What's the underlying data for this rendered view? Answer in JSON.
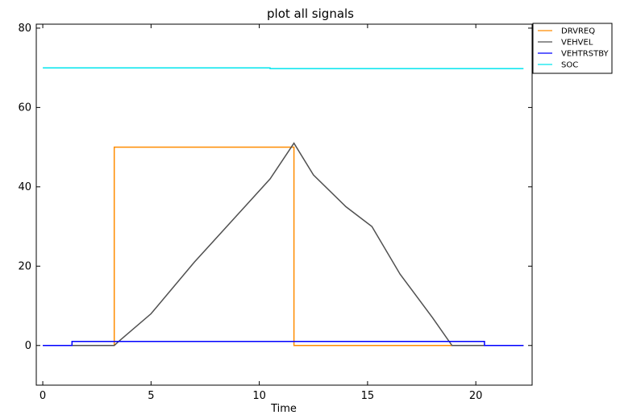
{
  "chart_data": {
    "type": "line",
    "title": "plot all signals",
    "xlabel": "Time",
    "ylabel": "",
    "xlim": [
      -0.3,
      22.6
    ],
    "ylim": [
      -10,
      81
    ],
    "xticks": [
      0,
      5,
      10,
      15,
      20
    ],
    "yticks": [
      0,
      20,
      40,
      60,
      80
    ],
    "x_tick_labels": [
      "0",
      "5",
      "10",
      "15",
      "20"
    ],
    "y_tick_labels": [
      "0",
      "20",
      "40",
      "60",
      "80"
    ],
    "grid": false,
    "legend_position": "outside-top-right",
    "series": [
      {
        "name": "DRVREQ",
        "color": "#ff8c00",
        "step": true,
        "x": [
          0,
          3.3,
          3.3,
          11.6,
          11.6,
          22.2
        ],
        "y": [
          0,
          0,
          50,
          50,
          0,
          0
        ]
      },
      {
        "name": "VEHVEL",
        "color": "#505050",
        "x": [
          0,
          3.3,
          3.5,
          5,
          7,
          9,
          10.5,
          11.6,
          12.5,
          14,
          15.2,
          16.5,
          18,
          18.9,
          20.4,
          22.2
        ],
        "y": [
          0,
          0,
          1,
          8,
          21,
          33,
          42,
          51,
          43,
          35,
          30,
          18,
          7,
          0,
          0,
          0
        ]
      },
      {
        "name": "VEHTRSTBY",
        "color": "#0000ff",
        "step": true,
        "x": [
          0,
          1.35,
          1.35,
          20.4,
          20.4,
          22.2
        ],
        "y": [
          0,
          0,
          1,
          1,
          0,
          0
        ]
      },
      {
        "name": "SOC",
        "color": "#00e5ee",
        "step": true,
        "x": [
          0,
          10.5,
          10.5,
          22.2
        ],
        "y": [
          70,
          70,
          69.8,
          69.8
        ]
      }
    ]
  }
}
